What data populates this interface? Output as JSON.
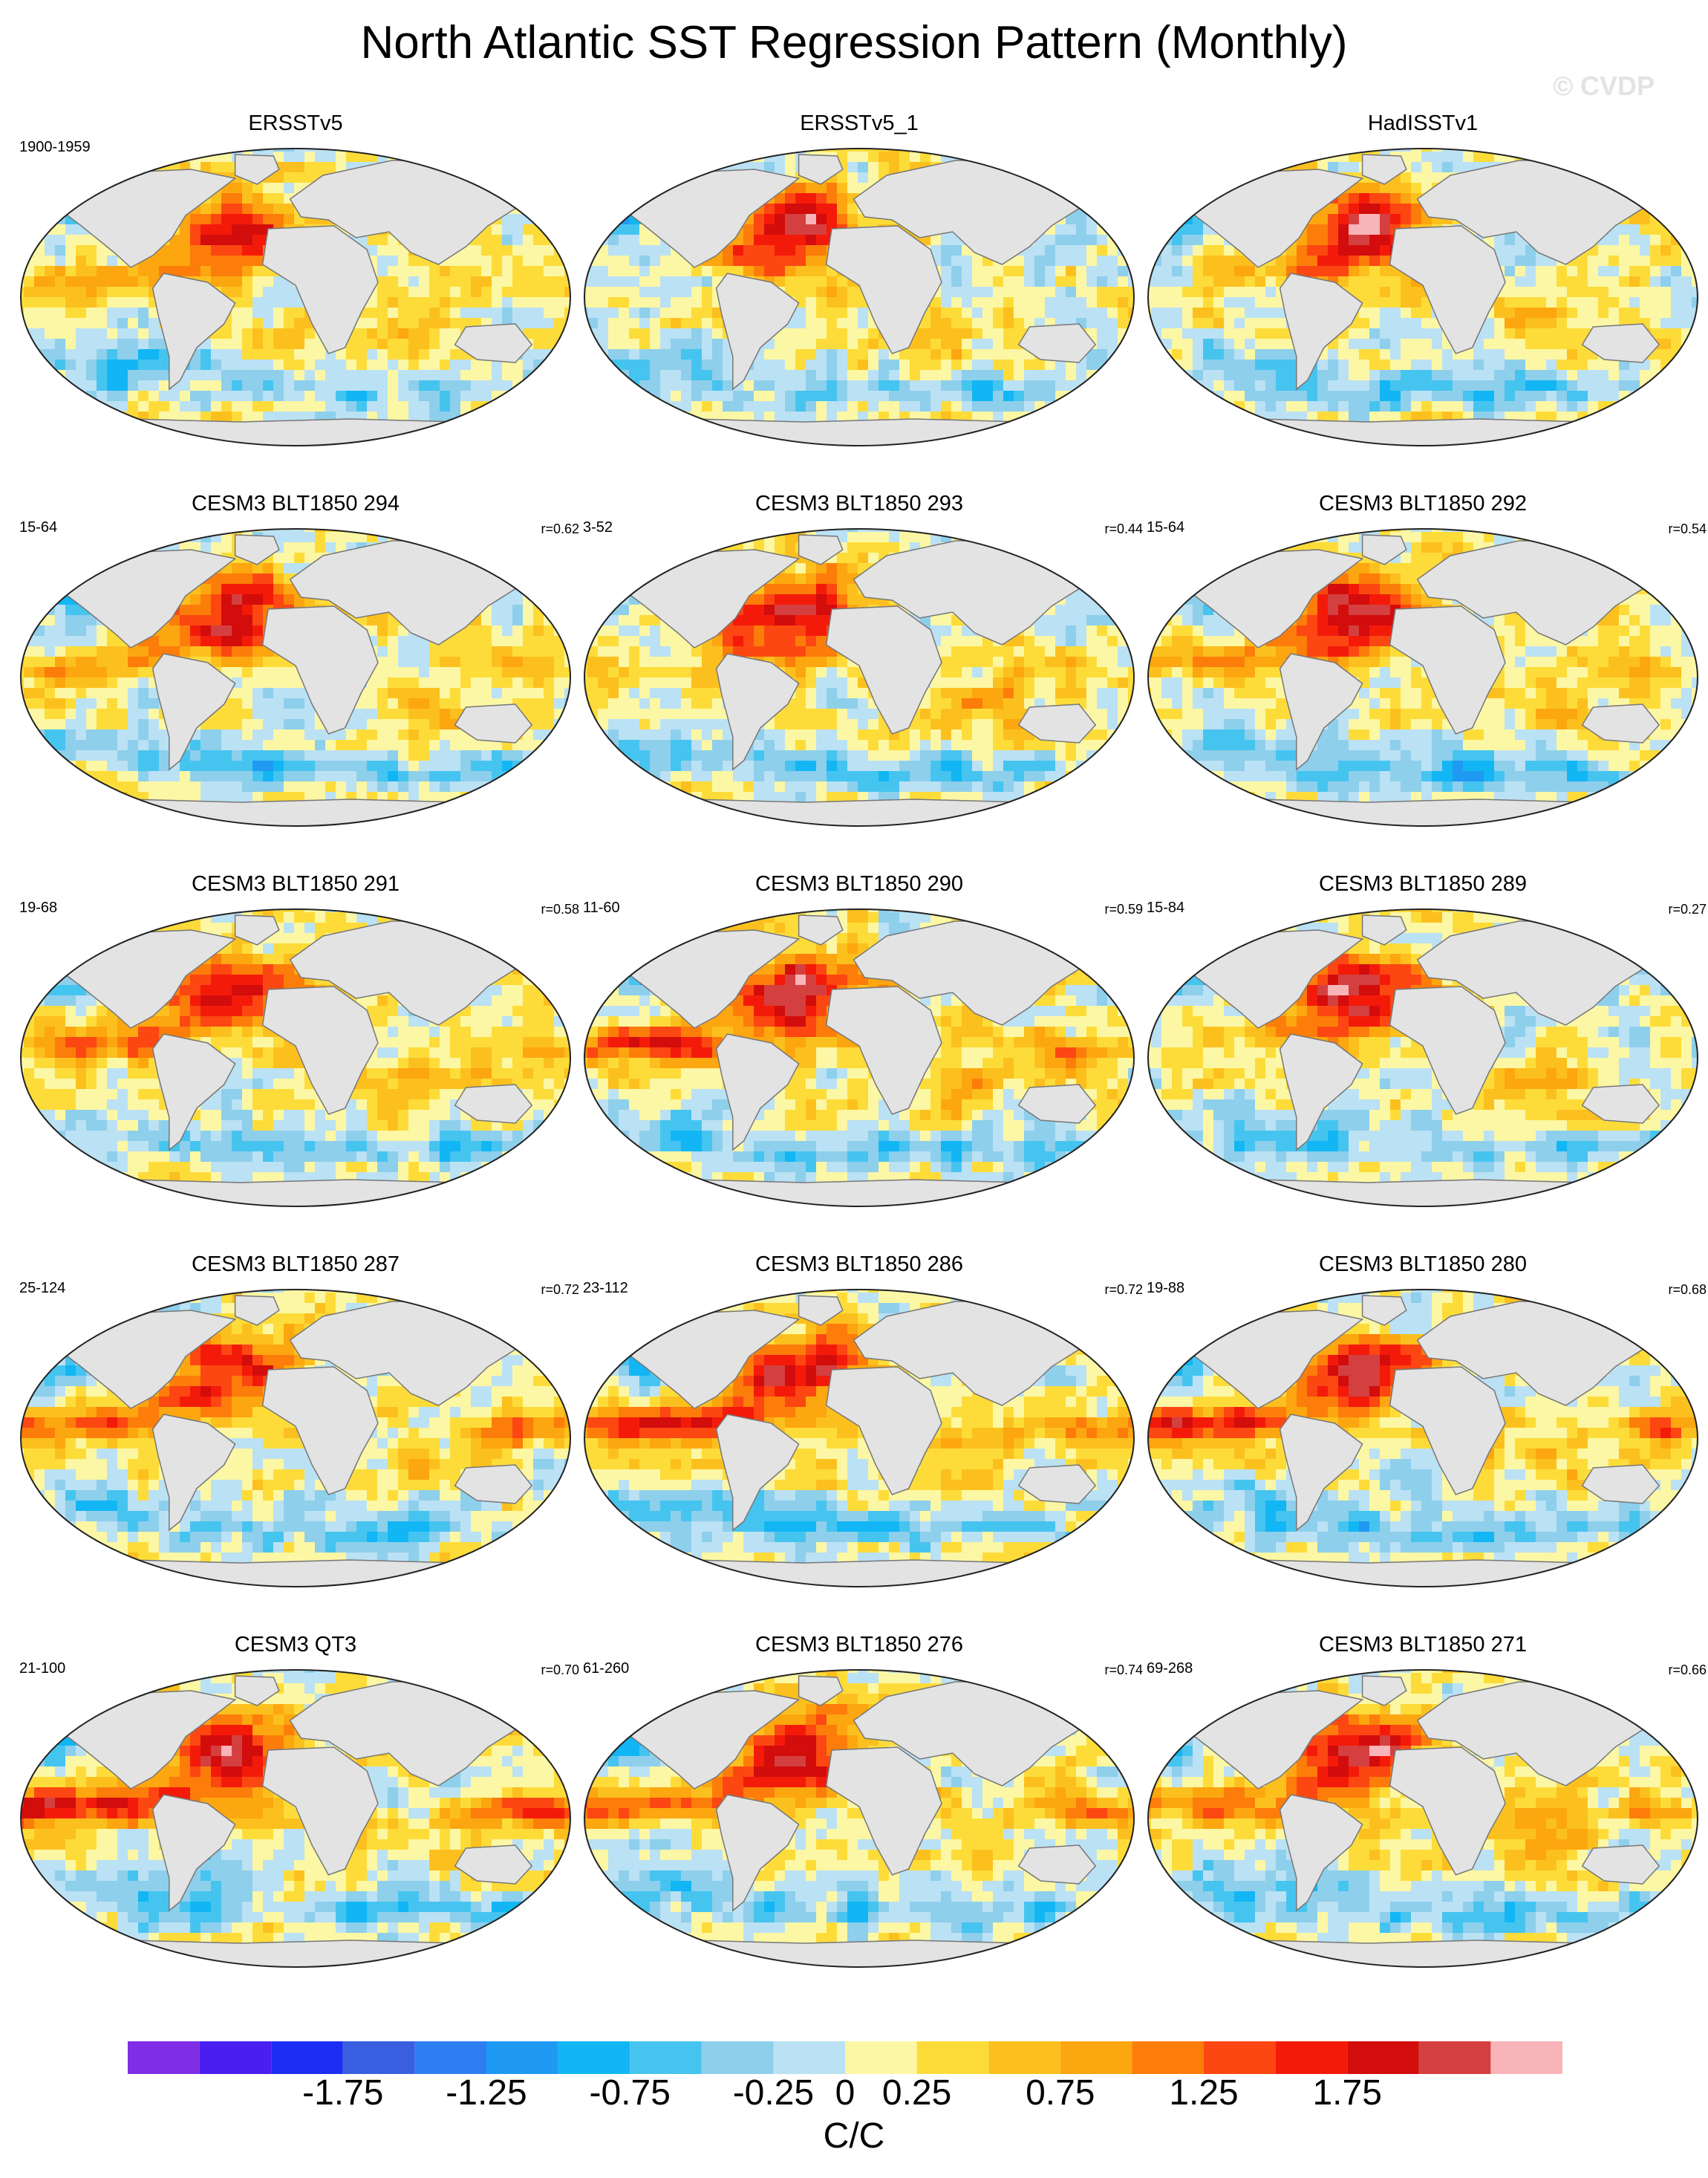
{
  "title": "North Atlantic SST Regression Pattern (Monthly)",
  "watermark": "© CVDP",
  "chart_data": {
    "type": "heatmap",
    "title": "North Atlantic SST Regression Pattern (Monthly)",
    "projection": "robinson",
    "legend": "bottom",
    "colorbar": {
      "units": "C/C",
      "levels": [
        -1.75,
        -1.5,
        -1.25,
        -1.0,
        -0.75,
        -0.5,
        -0.25,
        0,
        0.25,
        0.5,
        0.75,
        1.0,
        1.25,
        1.5,
        1.75,
        2.0
      ],
      "tick_labels": [
        "-1.75",
        "-1.25",
        "-0.75",
        "-0.25",
        "0",
        "0.25",
        "0.75",
        "1.25",
        "1.75"
      ],
      "colors": [
        "#7f2ee6",
        "#4a1ef0",
        "#1c2ef2",
        "#3a5ee0",
        "#2e7ef2",
        "#1e9af2",
        "#12b6f4",
        "#46c4f0",
        "#8ecfeb",
        "#bbe1f4",
        "#fcf7a4",
        "#fddc3a",
        "#fcc01e",
        "#fca610",
        "#fc7d0a",
        "#fc4712",
        "#f41a0a",
        "#d30c0c",
        "#d44040",
        "#f8b4b8"
      ]
    },
    "panels": [
      {
        "label": "ERSSTv5",
        "years": "1900-1959",
        "r": ""
      },
      {
        "label": "ERSSTv5_1",
        "years": "",
        "r": ""
      },
      {
        "label": "HadISSTv1",
        "years": "",
        "r": ""
      },
      {
        "label": "CESM3 BLT1850 294",
        "years": "15-64",
        "r": "r=0.62"
      },
      {
        "label": "CESM3 BLT1850 293",
        "years": "3-52",
        "r": "r=0.44"
      },
      {
        "label": "CESM3 BLT1850 292",
        "years": "15-64",
        "r": "r=0.54"
      },
      {
        "label": "CESM3 BLT1850 291",
        "years": "19-68",
        "r": "r=0.58"
      },
      {
        "label": "CESM3 BLT1850 290",
        "years": "11-60",
        "r": "r=0.59"
      },
      {
        "label": "CESM3 BLT1850 289",
        "years": "15-84",
        "r": "r=0.27"
      },
      {
        "label": "CESM3 BLT1850 287",
        "years": "25-124",
        "r": "r=0.72"
      },
      {
        "label": "CESM3 BLT1850 286",
        "years": "23-112",
        "r": "r=0.72"
      },
      {
        "label": "CESM3 BLT1850 280",
        "years": "19-88",
        "r": "r=0.68"
      },
      {
        "label": "CESM3 QT3",
        "years": "21-100",
        "r": "r=0.70"
      },
      {
        "label": "CESM3 BLT1850 276",
        "years": "61-260",
        "r": "r=0.74"
      },
      {
        "label": "CESM3 BLT1850 271",
        "years": "69-268",
        "r": "r=0.66"
      }
    ]
  }
}
